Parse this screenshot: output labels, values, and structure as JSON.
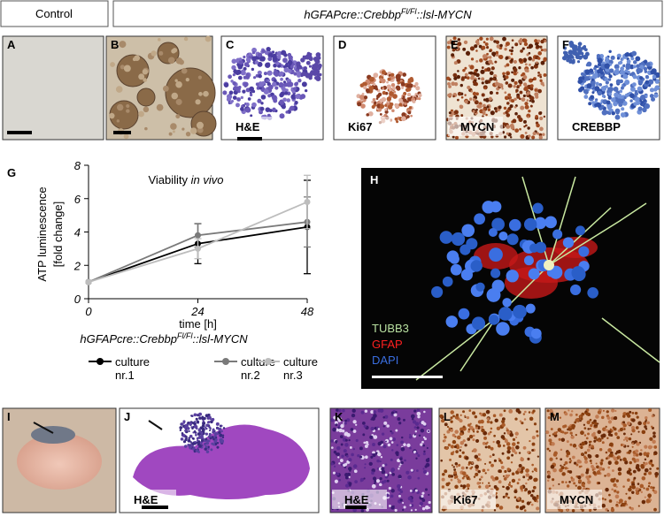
{
  "header": {
    "control": "Control",
    "genotype": {
      "prefix": "hGFAPcre::Crebbp",
      "superscript": "Fl/Fl",
      "suffix": "::lsl-MYCN"
    }
  },
  "panels": [
    {
      "letter": "A"
    },
    {
      "letter": "B"
    },
    {
      "letter": "C",
      "stain": "H&E"
    },
    {
      "letter": "D",
      "stain": "Ki67"
    },
    {
      "letter": "E",
      "stain": "MYCN"
    },
    {
      "letter": "F",
      "stain": "CREBBP"
    },
    {
      "letter": "I"
    },
    {
      "letter": "J",
      "stain": "H&E"
    },
    {
      "letter": "K",
      "stain": "H&E"
    },
    {
      "letter": "L",
      "stain": "Ki67"
    },
    {
      "letter": "M",
      "stain": "MYCN"
    }
  ],
  "fluorescence": {
    "letter": "H",
    "channels": [
      {
        "name": "TUBB3",
        "color": "#b8e0a0"
      },
      {
        "name": "GFAP",
        "color": "#ff2020"
      },
      {
        "name": "DAPI",
        "color": "#3a6ee0"
      }
    ]
  },
  "chart_data": {
    "type": "line",
    "letter": "G",
    "title": "Viability ",
    "title_italic": "in vivo",
    "xlabel": "time [h]",
    "ylabel": "ATP luminescence",
    "ylabel_unit": "[fold change]",
    "x": [
      0,
      24,
      48
    ],
    "xlim": [
      0,
      48
    ],
    "xticks": [
      0,
      24,
      48
    ],
    "ylim": [
      0,
      8
    ],
    "yticks": [
      0,
      2,
      4,
      6,
      8
    ],
    "legend_title": {
      "prefix": "hGFAPcre::Crebbp",
      "superscript": "Fl/Fl",
      "suffix": "::lsl-MYCN"
    },
    "series": [
      {
        "name": "culture nr.1",
        "color": "#000000",
        "values": [
          1,
          3.3,
          4.3
        ],
        "errors": [
          0,
          1.2,
          2.8
        ]
      },
      {
        "name": "culture nr.2",
        "color": "#7a7a7a",
        "values": [
          1,
          3.8,
          4.6
        ],
        "errors": [
          0,
          0.7,
          1.5
        ]
      },
      {
        "name": "culture nr.3",
        "color": "#bdbdbd",
        "values": [
          1,
          3.0,
          5.8
        ],
        "errors": [
          0,
          0.6,
          1.6
        ]
      }
    ]
  }
}
